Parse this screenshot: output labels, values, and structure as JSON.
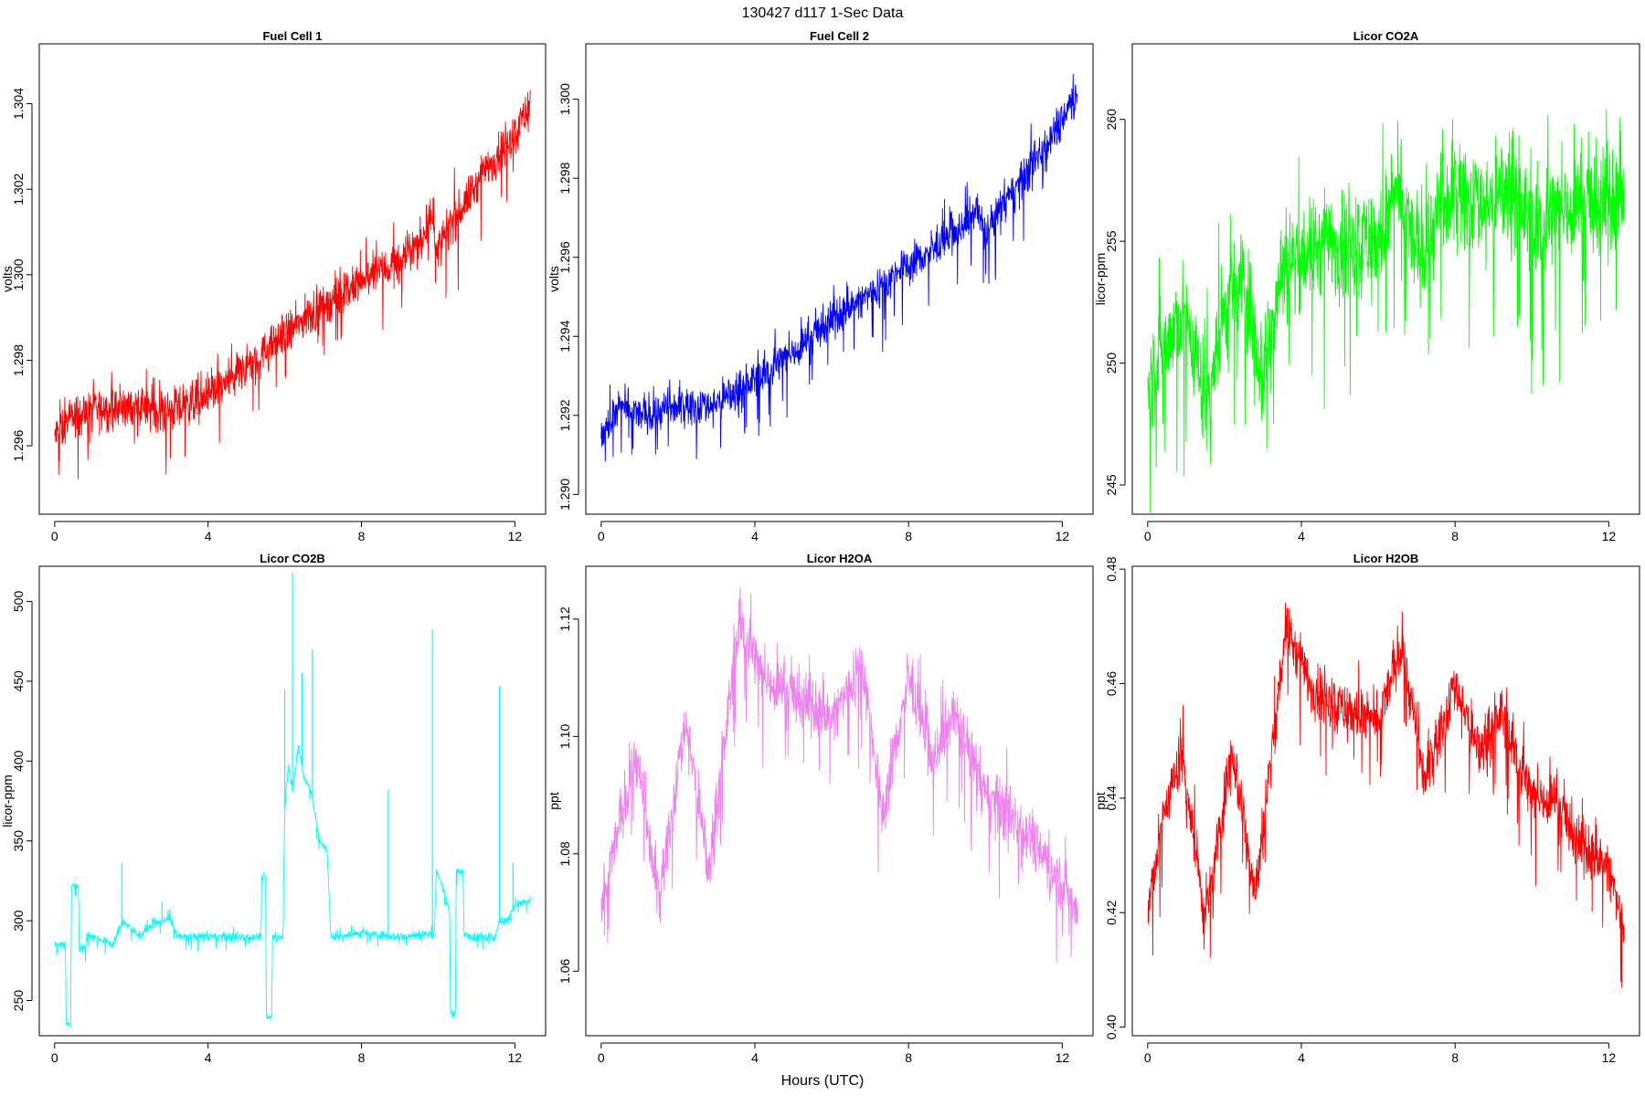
{
  "figure": {
    "title": "130427   d117   1-Sec Data",
    "xlabel": "Hours (UTC)"
  },
  "chart_data": [
    {
      "type": "line",
      "title": "Fuel Cell 1",
      "ylabel": "volts",
      "color": "#ff0000",
      "xlim": [
        0,
        12.4
      ],
      "ylim": [
        1.2944,
        1.3054
      ],
      "xticks": [
        0,
        4,
        8,
        12
      ],
      "xtick_labels": [
        "0",
        "4",
        "8",
        "12"
      ],
      "yticks": [
        1.296,
        1.298,
        1.3,
        1.302,
        1.304
      ],
      "ytick_labels": [
        "1.296",
        "1.298",
        "1.300",
        "1.302",
        "1.304"
      ],
      "noise": 0.00035,
      "x": [
        0,
        0.5,
        1,
        1.5,
        2,
        3,
        4,
        5,
        6,
        7,
        8,
        8.5,
        9,
        9.5,
        9.8,
        10,
        10.5,
        11,
        11.5,
        12,
        12.4
      ],
      "y": [
        1.2962,
        1.2967,
        1.2968,
        1.2969,
        1.2969,
        1.2968,
        1.2972,
        1.2978,
        1.2986,
        1.2993,
        1.2998,
        1.3001,
        1.3003,
        1.3007,
        1.3014,
        1.3006,
        1.3014,
        1.3021,
        1.3028,
        1.3033,
        1.304
      ]
    },
    {
      "type": "line",
      "title": "Fuel Cell 2",
      "ylabel": "volts",
      "color": "#0000ff",
      "xlim": [
        0,
        12.4
      ],
      "ylim": [
        1.2895,
        1.3014
      ],
      "xticks": [
        0,
        4,
        8,
        12
      ],
      "xtick_labels": [
        "0",
        "4",
        "8",
        "12"
      ],
      "yticks": [
        1.29,
        1.292,
        1.294,
        1.296,
        1.298,
        1.3
      ],
      "ytick_labels": [
        "1.290",
        "1.292",
        "1.294",
        "1.296",
        "1.298",
        "1.300"
      ],
      "noise": 0.00035,
      "x": [
        0,
        0.5,
        1,
        2,
        3,
        4,
        5,
        6,
        7,
        8,
        9,
        9.8,
        10,
        10.5,
        11,
        11.5,
        12,
        12.4
      ],
      "y": [
        1.2915,
        1.2922,
        1.292,
        1.2922,
        1.2923,
        1.2929,
        1.2936,
        1.2944,
        1.2951,
        1.2958,
        1.2964,
        1.2972,
        1.2966,
        1.2974,
        1.298,
        1.2988,
        1.2995,
        1.3003
      ]
    },
    {
      "type": "line",
      "title": "Licor CO2A",
      "ylabel": "licor-ppm",
      "color": "#00ff00",
      "xlim": [
        0,
        12.4
      ],
      "ylim": [
        243.8,
        263.1
      ],
      "xticks": [
        0,
        4,
        8,
        12
      ],
      "xtick_labels": [
        "0",
        "4",
        "8",
        "12"
      ],
      "yticks": [
        245,
        250,
        255,
        260
      ],
      "ytick_labels": [
        "245",
        "250",
        "255",
        "260"
      ],
      "noise": 1.6,
      "x": [
        0,
        0.5,
        1,
        1.5,
        2,
        2.5,
        3,
        3.5,
        4,
        5,
        6,
        6.5,
        7,
        8,
        9,
        9.5,
        10,
        11,
        12,
        12.4
      ],
      "y": [
        249.0,
        251.0,
        252.0,
        248.5,
        252.0,
        253.5,
        249.5,
        254.0,
        254.5,
        255.0,
        255.0,
        257.0,
        254.5,
        257.0,
        256.5,
        257.5,
        255.5,
        256.5,
        256.5,
        257.0
      ]
    },
    {
      "type": "line",
      "title": "Licor CO2B",
      "ylabel": "licor-ppm",
      "color": "#00ffff",
      "xlim": [
        0,
        12.4
      ],
      "ylim": [
        228,
        522
      ],
      "xticks": [
        0,
        4,
        8,
        12
      ],
      "xtick_labels": [
        "0",
        "4",
        "8",
        "12"
      ],
      "yticks": [
        250,
        300,
        350,
        400,
        450,
        500
      ],
      "ytick_labels": [
        "250",
        "300",
        "350",
        "400",
        "450",
        "500"
      ],
      "noise": 2.0,
      "x": [
        0,
        0.28,
        0.3,
        0.42,
        0.44,
        0.62,
        0.64,
        0.8,
        0.85,
        1.0,
        1.5,
        1.8,
        2.2,
        2.6,
        3.0,
        3.2,
        4.0,
        5.0,
        5.38,
        5.4,
        5.5,
        5.52,
        5.66,
        5.68,
        5.95,
        6.0,
        6.1,
        6.2,
        6.35,
        6.5,
        6.7,
        6.9,
        7.1,
        7.2,
        8.0,
        9.0,
        9.9,
        9.95,
        10.0,
        10.3,
        10.32,
        10.45,
        10.47,
        10.65,
        10.67,
        11.0,
        11.5,
        11.6,
        11.8,
        12.0,
        12.4
      ],
      "y": [
        285,
        285,
        235,
        235,
        322,
        322,
        283,
        283,
        292,
        290,
        285,
        300,
        290,
        298,
        302,
        290,
        290,
        290,
        290,
        328,
        328,
        240,
        240,
        290,
        290,
        370,
        400,
        380,
        410,
        390,
        380,
        350,
        345,
        290,
        292,
        290,
        292,
        330,
        330,
        305,
        242,
        242,
        330,
        330,
        292,
        290,
        290,
        300,
        300,
        310,
        312
      ],
      "spikes": [
        [
          1.75,
          336
        ],
        [
          2.8,
          312
        ],
        [
          6.0,
          445
        ],
        [
          6.2,
          518
        ],
        [
          6.45,
          455
        ],
        [
          6.72,
          470
        ],
        [
          8.7,
          382
        ],
        [
          9.85,
          482
        ],
        [
          11.6,
          447
        ],
        [
          11.95,
          336
        ]
      ]
    },
    {
      "type": "line",
      "title": "Licor H2OA",
      "ylabel": "ppt",
      "color": "#ee82ee",
      "xlim": [
        0,
        12.4
      ],
      "ylim": [
        1.049,
        1.129
      ],
      "xticks": [
        0,
        4,
        8,
        12
      ],
      "xtick_labels": [
        "0",
        "4",
        "8",
        "12"
      ],
      "yticks": [
        1.06,
        1.08,
        1.1,
        1.12
      ],
      "ytick_labels": [
        "1.06",
        "1.08",
        "1.10",
        "1.12"
      ],
      "noise": 0.0035,
      "x": [
        0,
        0.4,
        0.9,
        1.5,
        2.2,
        2.8,
        3.6,
        4.2,
        5.0,
        6.0,
        6.8,
        7.3,
        8.0,
        8.6,
        9.2,
        10.0,
        10.6,
        11.2,
        12.0,
        12.4
      ],
      "y": [
        1.07,
        1.083,
        1.097,
        1.072,
        1.103,
        1.077,
        1.12,
        1.11,
        1.107,
        1.103,
        1.113,
        1.086,
        1.11,
        1.096,
        1.104,
        1.09,
        1.087,
        1.083,
        1.075,
        1.07
      ]
    },
    {
      "type": "line",
      "title": "Licor H2OB",
      "ylabel": "ppt",
      "color": "#ff0000",
      "xlim": [
        0,
        12.4
      ],
      "ylim": [
        0.3985,
        0.4805
      ],
      "xticks": [
        0,
        4,
        8,
        12
      ],
      "xtick_labels": [
        "0",
        "4",
        "8",
        "12"
      ],
      "yticks": [
        0.4,
        0.42,
        0.44,
        0.46,
        0.48
      ],
      "ytick_labels": [
        "0.40",
        "0.42",
        "0.44",
        "0.46",
        "0.48"
      ],
      "noise": 0.0035,
      "x": [
        0,
        0.4,
        0.9,
        1.5,
        2.2,
        2.8,
        3.6,
        4.2,
        5.0,
        6.0,
        6.6,
        7.2,
        8.0,
        8.6,
        9.2,
        10.0,
        10.6,
        11.2,
        12.0,
        12.4
      ],
      "y": [
        0.42,
        0.437,
        0.448,
        0.418,
        0.449,
        0.423,
        0.47,
        0.46,
        0.456,
        0.453,
        0.467,
        0.443,
        0.46,
        0.448,
        0.455,
        0.44,
        0.44,
        0.432,
        0.428,
        0.417
      ]
    }
  ]
}
